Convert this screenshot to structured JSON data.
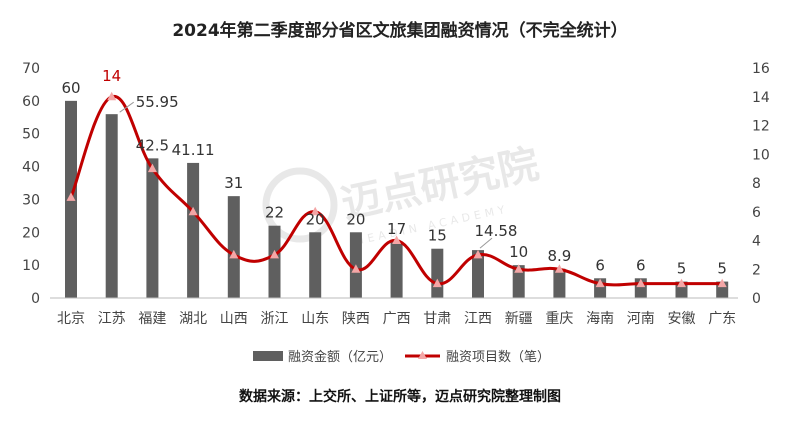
{
  "title": "2024年第二季度部分省区文旅集团融资情况（不完全统计）",
  "source": "数据来源：上交所、上证所等，迈点研究院整理制图",
  "watermark": {
    "cn": "迈点研究院",
    "en": "MEADIN ACADEMY"
  },
  "chart_data": {
    "type": "bar+line",
    "title": "2024年第二季度部分省区文旅集团融资情况（不完全统计）",
    "categories": [
      "北京",
      "江苏",
      "福建",
      "湖北",
      "山西",
      "浙江",
      "山东",
      "陕西",
      "广西",
      "甘肃",
      "江西",
      "新疆",
      "重庆",
      "海南",
      "河南",
      "安徽",
      "广东"
    ],
    "series": [
      {
        "name": "融资金额（亿元）",
        "type": "bar",
        "axis": "left",
        "color": "#5f5f5f",
        "values": [
          60,
          55.95,
          42.5,
          41.11,
          31,
          22,
          20,
          20,
          17,
          15,
          14.58,
          10,
          8.9,
          6,
          6,
          5,
          5
        ],
        "labels": [
          "60",
          "55.95",
          "42.5",
          "41.11",
          "31",
          "22",
          "20",
          "20",
          "17",
          "15",
          "14.58",
          "10",
          "8.9",
          "6",
          "6",
          "5",
          "5"
        ]
      },
      {
        "name": "融资项目数（笔）",
        "type": "line",
        "axis": "right",
        "color": "#c00000",
        "marker_color": "#f4a6a6",
        "values": [
          7,
          14,
          9,
          6,
          3,
          3,
          6,
          2,
          4,
          1,
          3,
          2,
          2,
          1,
          1,
          1,
          1
        ],
        "highlight_label": {
          "index": 1,
          "text": "14"
        }
      }
    ],
    "left_axis": {
      "ylim": [
        0,
        70
      ],
      "ticks": [
        "0",
        "10",
        "20",
        "30",
        "40",
        "50",
        "60",
        "70"
      ]
    },
    "right_axis": {
      "ylim": [
        0,
        16
      ],
      "ticks": [
        "0",
        "2",
        "4",
        "6",
        "8",
        "10",
        "12",
        "14",
        "16"
      ]
    },
    "grid": false,
    "legend": "bottom"
  }
}
